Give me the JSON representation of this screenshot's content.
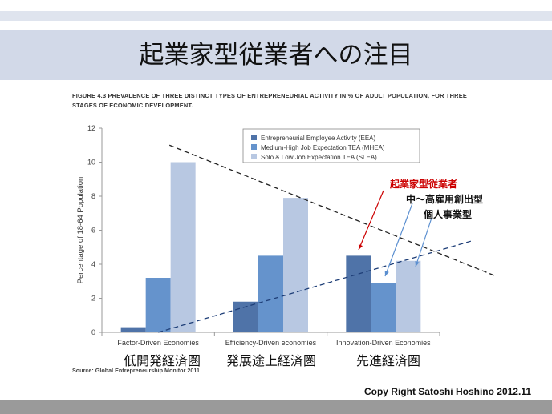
{
  "slide": {
    "title": "起業家型従業者への注目",
    "figure_title": "FIGURE 4.3 PREVALENCE OF THREE DISTINCT TYPES OF ENTREPRENEURIAL ACTIVITY IN % OF ADULT POPULATION, FOR THREE STAGES OF ECONOMIC DEVELOPMENT.",
    "source": "Source: Global Entrepreneurship Monitor 2011",
    "copyright": "Copy Right  Satoshi Hoshino 2012.11",
    "region_labels": [
      "低開発経済圏",
      "発展途上経済圏",
      "先進経済圏"
    ],
    "annotations": {
      "eea": "起業家型従業者",
      "mhea": "中～高雇用創出型",
      "slea": "個人事業型"
    },
    "colors": {
      "title_band": "#d2d9e8",
      "annotation_red": "#cc0000",
      "arrow_blue": "#5b8fd0"
    }
  },
  "chart_data": {
    "type": "bar",
    "categories": [
      "Factor-Driven Economies",
      "Efficiency-Driven economies",
      "Innovation-Driven Economies"
    ],
    "series": [
      {
        "name": "Entrepreneurial Employee Activity (EEA)",
        "values": [
          0.3,
          1.8,
          4.5
        ],
        "color": "#4f73a8"
      },
      {
        "name": "Medium-High Job  Expectation TEA (MHEA)",
        "values": [
          3.2,
          4.5,
          2.9
        ],
        "color": "#6593cc"
      },
      {
        "name": "Solo & Low Job Expectation TEA (SLEA)",
        "values": [
          10.0,
          7.9,
          4.2
        ],
        "color": "#b8c8e2"
      }
    ],
    "ylabel": "Percentage of 18-64 Population",
    "ylim": [
      0,
      12
    ],
    "yticks": [
      0,
      2,
      4,
      6,
      8,
      10,
      12
    ],
    "legend_position": "top-right",
    "trendlines": [
      {
        "style": "dashed",
        "color": "#222222",
        "from": {
          "x": 0.6,
          "y": 11.0
        },
        "to": {
          "x": 3.5,
          "y": 3.3
        }
      },
      {
        "style": "dashed",
        "color": "#1f3f78",
        "from": {
          "x": 0.5,
          "y": 0.0
        },
        "to": {
          "x": 3.3,
          "y": 5.4
        }
      }
    ]
  }
}
